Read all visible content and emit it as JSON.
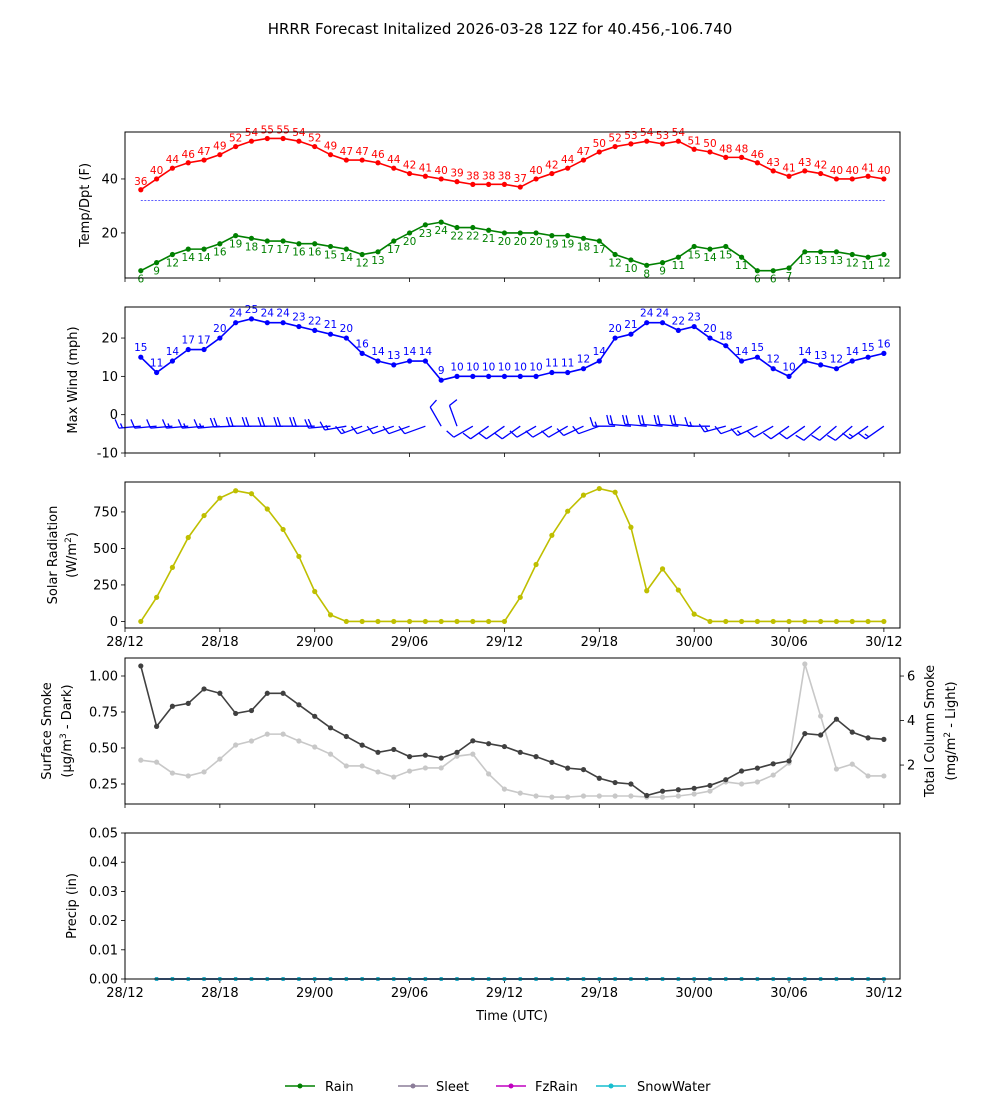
{
  "title": "HRRR Forecast Initalized 2026-03-28 12Z for 40.456,-106.740",
  "x_axis": {
    "label": "Time (UTC)",
    "ticks": [
      "28/12",
      "28/18",
      "29/00",
      "29/06",
      "29/12",
      "29/18",
      "30/00",
      "30/06",
      "30/12"
    ]
  },
  "chart_data": [
    {
      "type": "line",
      "ylabel": "Temp/Dpt (F)",
      "ylim": [
        3.3,
        57.4
      ],
      "yticks": [
        "20",
        "40"
      ],
      "freezing_line": 32,
      "freezing_line_color": "#0000ff",
      "x": [
        "28/13",
        "28/14",
        "28/15",
        "28/16",
        "28/17",
        "28/18",
        "28/19",
        "28/20",
        "28/21",
        "28/22",
        "28/23",
        "29/00",
        "29/01",
        "29/02",
        "29/03",
        "29/04",
        "29/05",
        "29/06",
        "29/07",
        "29/08",
        "29/09",
        "29/10",
        "29/11",
        "29/12",
        "29/13",
        "29/14",
        "29/15",
        "29/16",
        "29/17",
        "29/18",
        "29/19",
        "29/20",
        "29/21",
        "29/22",
        "29/23",
        "30/00",
        "30/01",
        "30/02",
        "30/03",
        "30/04",
        "30/05",
        "30/06",
        "30/07",
        "30/08",
        "30/09",
        "30/10",
        "30/11",
        "30/12"
      ],
      "series": [
        {
          "color": "#ff0000",
          "values": [
            36,
            40,
            44,
            46,
            47,
            49,
            52,
            54,
            55,
            55,
            54,
            52,
            49,
            47,
            47,
            46,
            44,
            42,
            41,
            40,
            39,
            38,
            38,
            38,
            37,
            40,
            42,
            44,
            47,
            50,
            52,
            53,
            54,
            53,
            54,
            51,
            50,
            48,
            48,
            46,
            43,
            41,
            43,
            42,
            40,
            40,
            41,
            40
          ]
        },
        {
          "color": "#008000",
          "values": [
            6,
            9,
            12,
            14,
            14,
            16,
            19,
            18,
            17,
            17,
            16,
            16,
            15,
            14,
            12,
            13,
            17,
            20,
            23,
            24,
            22,
            22,
            21,
            20,
            20,
            20,
            19,
            19,
            18,
            17,
            12,
            10,
            8,
            9,
            11,
            15,
            14,
            15,
            11,
            6,
            6,
            7,
            13,
            13,
            13,
            12,
            11,
            12
          ]
        }
      ]
    },
    {
      "type": "line",
      "ylabel": "Max Wind (mph)",
      "ylim": [
        -10,
        28.1
      ],
      "yticks": [
        "-10",
        "0",
        "10",
        "20"
      ],
      "series": [
        {
          "color": "#0000ff",
          "values": [
            15,
            11,
            14,
            17,
            17,
            20,
            24,
            25,
            24,
            24,
            23,
            22,
            21,
            20,
            16,
            14,
            13,
            14,
            14,
            9,
            10,
            10,
            10,
            10,
            10,
            10,
            11,
            11,
            12,
            14,
            20,
            21,
            24,
            24,
            22,
            23,
            20,
            18,
            14,
            15,
            12,
            10,
            14,
            13,
            12,
            14,
            15,
            16
          ]
        }
      ],
      "wind_barbs": {
        "color": "#0000ff",
        "level": -3,
        "direction_deg": [
          265,
          265,
          265,
          265,
          265,
          265,
          268,
          270,
          270,
          270,
          270,
          270,
          265,
          260,
          250,
          250,
          250,
          250,
          250,
          330,
          340,
          240,
          235,
          235,
          235,
          240,
          240,
          240,
          245,
          250,
          270,
          275,
          275,
          275,
          275,
          275,
          270,
          255,
          250,
          245,
          240,
          235,
          235,
          230,
          230,
          230,
          235,
          235
        ]
      }
    },
    {
      "type": "line",
      "ylabel_line1": "Solar Radiation",
      "ylabel_line2": {
        "pre": "(W/m",
        "sup": "2",
        "post": ")"
      },
      "ylim": [
        -45,
        955
      ],
      "yticks": [
        "0",
        "250",
        "500",
        "750"
      ],
      "series": [
        {
          "color": "#bfbf00",
          "values": [
            0,
            165,
            370,
            575,
            725,
            845,
            895,
            875,
            770,
            630,
            445,
            205,
            45,
            0,
            0,
            0,
            0,
            0,
            0,
            0,
            0,
            0,
            0,
            0,
            165,
            390,
            590,
            755,
            865,
            910,
            885,
            645,
            210,
            360,
            215,
            50,
            0,
            0,
            0,
            0,
            0,
            0,
            0,
            0,
            0,
            0,
            0,
            0
          ]
        }
      ]
    },
    {
      "type": "line",
      "ylabel_left_line1": "Surface Smoke",
      "ylabel_left_line2": {
        "pre": "(μg/m",
        "sup": "3",
        "post": " - Dark)"
      },
      "ylabel_right_line1": "Total Column Smoke",
      "ylabel_right_line2": {
        "pre": "(mg/m",
        "sup": "2",
        "post": " - Light)"
      },
      "ylim_left": [
        0.111,
        1.125
      ],
      "yticks_left": [
        "0.25",
        "0.50",
        "0.75",
        "1.00"
      ],
      "ylim_right": [
        0.25,
        6.81
      ],
      "yticks_right": [
        "2",
        "4",
        "6"
      ],
      "series": [
        {
          "axis": "left",
          "color": "#404040",
          "values": [
            1.07,
            0.65,
            0.79,
            0.81,
            0.91,
            0.88,
            0.74,
            0.76,
            0.88,
            0.88,
            0.8,
            0.72,
            0.64,
            0.58,
            0.52,
            0.47,
            0.49,
            0.44,
            0.45,
            0.43,
            0.47,
            0.55,
            0.53,
            0.51,
            0.47,
            0.44,
            0.4,
            0.36,
            0.35,
            0.29,
            0.26,
            0.25,
            0.17,
            0.2,
            0.21,
            0.22,
            0.24,
            0.28,
            0.34,
            0.36,
            0.39,
            0.41,
            0.6,
            0.59,
            0.7,
            0.61,
            0.57,
            0.56
          ]
        },
        {
          "axis": "right",
          "color": "#c8c8c8",
          "values": [
            2.22,
            2.13,
            1.64,
            1.51,
            1.69,
            2.27,
            2.9,
            3.08,
            3.39,
            3.39,
            3.08,
            2.81,
            2.49,
            1.96,
            1.96,
            1.69,
            1.46,
            1.73,
            1.87,
            1.87,
            2.4,
            2.49,
            1.6,
            0.92,
            0.74,
            0.61,
            0.56,
            0.56,
            0.61,
            0.61,
            0.61,
            0.61,
            0.56,
            0.56,
            0.61,
            0.7,
            0.83,
            1.24,
            1.15,
            1.24,
            1.55,
            2.09,
            6.54,
            4.2,
            1.82,
            2.04,
            1.51,
            1.51
          ]
        }
      ]
    },
    {
      "type": "line",
      "ylabel": "Precip (in)",
      "ylim": [
        0,
        0.05
      ],
      "yticks": [
        "0.00",
        "0.01",
        "0.02",
        "0.03",
        "0.04",
        "0.05"
      ],
      "x_start_offset": 1,
      "series": [
        {
          "name": "Rain",
          "color": "#008000",
          "values": [
            0,
            0,
            0,
            0,
            0,
            0,
            0,
            0,
            0,
            0,
            0,
            0,
            0,
            0,
            0,
            0,
            0,
            0,
            0,
            0,
            0,
            0,
            0,
            0,
            0,
            0,
            0,
            0,
            0,
            0,
            0,
            0,
            0,
            0,
            0,
            0,
            0,
            0,
            0,
            0,
            0,
            0,
            0,
            0,
            0,
            0,
            0
          ]
        },
        {
          "name": "Sleet",
          "color": "#8c7d99",
          "values": [
            0,
            0,
            0,
            0,
            0,
            0,
            0,
            0,
            0,
            0,
            0,
            0,
            0,
            0,
            0,
            0,
            0,
            0,
            0,
            0,
            0,
            0,
            0,
            0,
            0,
            0,
            0,
            0,
            0,
            0,
            0,
            0,
            0,
            0,
            0,
            0,
            0,
            0,
            0,
            0,
            0,
            0,
            0,
            0,
            0,
            0,
            0
          ]
        },
        {
          "name": "FzRain",
          "color": "#c000c0",
          "values": [
            0,
            0,
            0,
            0,
            0,
            0,
            0,
            0,
            0,
            0,
            0,
            0,
            0,
            0,
            0,
            0,
            0,
            0,
            0,
            0,
            0,
            0,
            0,
            0,
            0,
            0,
            0,
            0,
            0,
            0,
            0,
            0,
            0,
            0,
            0,
            0,
            0,
            0,
            0,
            0,
            0,
            0,
            0,
            0,
            0,
            0,
            0
          ]
        },
        {
          "name": "SnowWater",
          "color": "#17becf",
          "values": [
            0,
            0,
            0,
            0,
            0,
            0,
            0,
            0,
            0,
            0,
            0,
            0,
            0,
            0,
            0,
            0,
            0,
            0,
            0,
            0,
            0,
            0,
            0,
            0,
            0,
            0,
            0,
            0,
            0,
            0,
            0,
            0,
            0,
            0,
            0,
            0,
            0,
            0,
            0,
            0,
            0,
            0,
            0,
            0,
            0,
            0,
            0
          ]
        }
      ],
      "legend_position": "bottom-center"
    }
  ]
}
